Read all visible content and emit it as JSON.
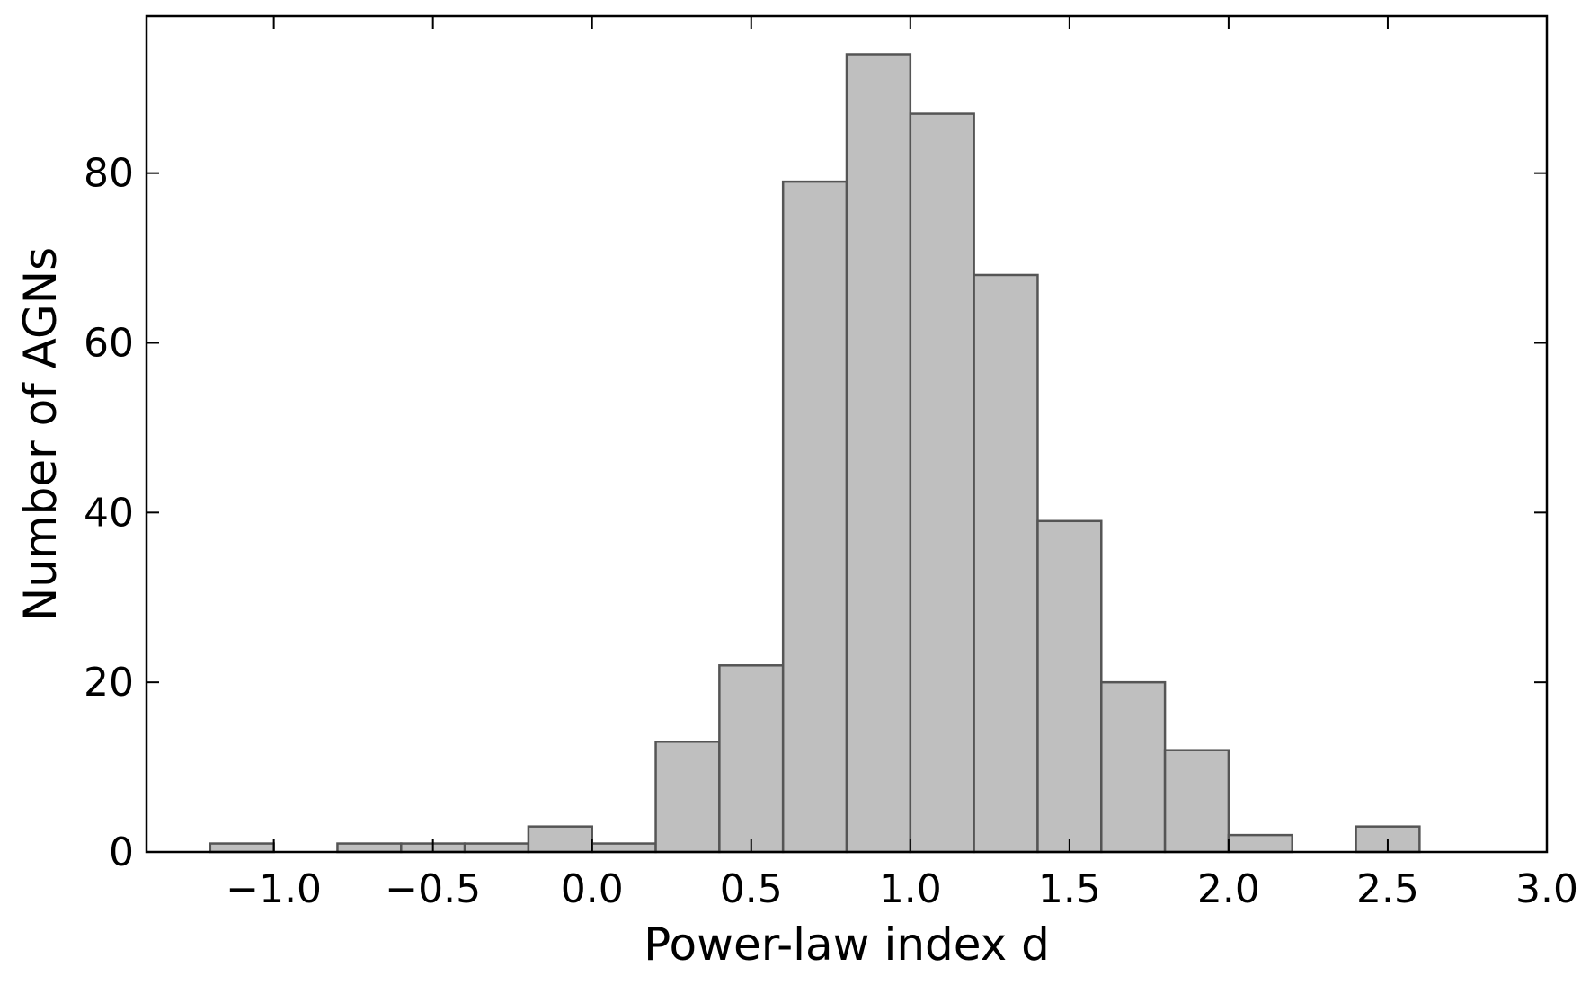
{
  "chart_data": {
    "type": "bar",
    "title": "",
    "xlabel": "Power-law index d",
    "ylabel": "Number of AGNs",
    "xlim": [
      -1.4,
      3.0
    ],
    "ylim": [
      0,
      98.5
    ],
    "bin_width": 0.2,
    "bins": [
      {
        "x0": -1.2,
        "x1": -1.0,
        "count": 1
      },
      {
        "x0": -1.0,
        "x1": -0.8,
        "count": 0
      },
      {
        "x0": -0.8,
        "x1": -0.6,
        "count": 1
      },
      {
        "x0": -0.6,
        "x1": -0.4,
        "count": 1
      },
      {
        "x0": -0.4,
        "x1": -0.2,
        "count": 1
      },
      {
        "x0": -0.2,
        "x1": 0.0,
        "count": 3
      },
      {
        "x0": 0.0,
        "x1": 0.2,
        "count": 1
      },
      {
        "x0": 0.2,
        "x1": 0.4,
        "count": 13
      },
      {
        "x0": 0.4,
        "x1": 0.6,
        "count": 22
      },
      {
        "x0": 0.6,
        "x1": 0.8,
        "count": 79
      },
      {
        "x0": 0.8,
        "x1": 1.0,
        "count": 94
      },
      {
        "x0": 1.0,
        "x1": 1.2,
        "count": 87
      },
      {
        "x0": 1.2,
        "x1": 1.4,
        "count": 68
      },
      {
        "x0": 1.4,
        "x1": 1.6,
        "count": 39
      },
      {
        "x0": 1.6,
        "x1": 1.8,
        "count": 20
      },
      {
        "x0": 1.8,
        "x1": 2.0,
        "count": 12
      },
      {
        "x0": 2.0,
        "x1": 2.2,
        "count": 2
      },
      {
        "x0": 2.2,
        "x1": 2.4,
        "count": 0
      },
      {
        "x0": 2.4,
        "x1": 2.6,
        "count": 3
      }
    ],
    "x_ticks": [
      {
        "value": -1.0,
        "label": "−1.0"
      },
      {
        "value": -0.5,
        "label": "−0.5"
      },
      {
        "value": 0.0,
        "label": "0.0"
      },
      {
        "value": 0.5,
        "label": "0.5"
      },
      {
        "value": 1.0,
        "label": "1.0"
      },
      {
        "value": 1.5,
        "label": "1.5"
      },
      {
        "value": 2.0,
        "label": "2.0"
      },
      {
        "value": 2.5,
        "label": "2.5"
      },
      {
        "value": 3.0,
        "label": "3.0"
      }
    ],
    "y_ticks": [
      {
        "value": 0,
        "label": "0"
      },
      {
        "value": 20,
        "label": "20"
      },
      {
        "value": 40,
        "label": "40"
      },
      {
        "value": 60,
        "label": "60"
      },
      {
        "value": 80,
        "label": "80"
      }
    ],
    "grid": false,
    "legend": "none",
    "colors": {
      "bar_fill": "#bfbfbf",
      "bar_edge": "#555555",
      "axes": "#000000"
    }
  }
}
